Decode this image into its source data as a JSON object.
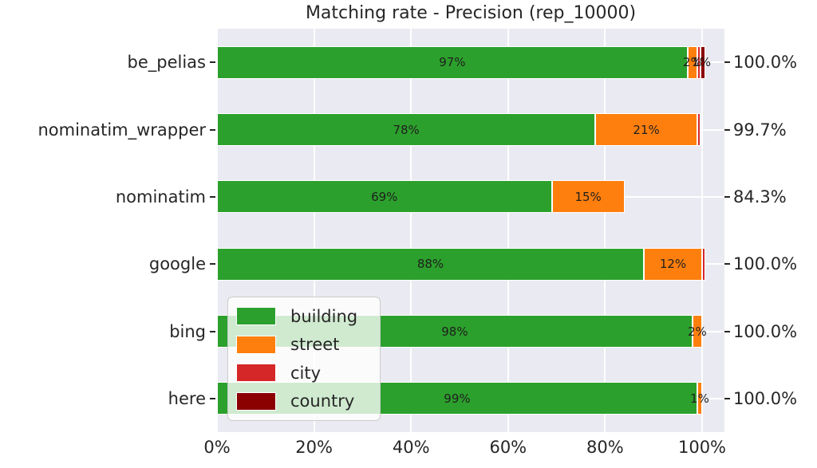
{
  "chart_data": {
    "type": "bar",
    "orientation": "horizontal",
    "stacked": true,
    "title": "Matching rate - Precision (rep_10000)",
    "categories": [
      "be_pelias",
      "nominatim_wrapper",
      "nominatim",
      "google",
      "bing",
      "here"
    ],
    "series": [
      {
        "name": "building",
        "color": "#2ca02c",
        "values": [
          97,
          78,
          69,
          88,
          98,
          99
        ]
      },
      {
        "name": "street",
        "color": "#ff7f0e",
        "values": [
          2,
          21,
          15,
          12,
          2,
          1
        ]
      },
      {
        "name": "city",
        "color": "#d62728",
        "values": [
          0.35,
          0.7,
          0,
          0.5,
          0,
          0
        ]
      },
      {
        "name": "country",
        "color": "#8b0000",
        "values": [
          1,
          0,
          0,
          0,
          0,
          0
        ]
      }
    ],
    "segment_labels": [
      [
        "97%",
        "2%",
        "",
        "1%"
      ],
      [
        "78%",
        "21%",
        "",
        ""
      ],
      [
        "69%",
        "15%",
        "",
        ""
      ],
      [
        "88%",
        "12%",
        "",
        ""
      ],
      [
        "98%",
        "2%",
        "",
        ""
      ],
      [
        "99%",
        "1%",
        "",
        ""
      ]
    ],
    "right_axis_labels": [
      "100.0%",
      "99.7%",
      "84.3%",
      "100.0%",
      "100.0%",
      "100.0%"
    ],
    "x_tick_labels": [
      "0%",
      "20%",
      "40%",
      "60%",
      "80%",
      "100%"
    ],
    "x_tick_values": [
      0,
      20,
      40,
      60,
      80,
      100
    ],
    "xlim": [
      0,
      104.6
    ],
    "grid": true,
    "legend": {
      "position": "lower left inside",
      "items": [
        "building",
        "street",
        "city",
        "country"
      ]
    },
    "colors": {
      "plot_background": "#eaeaf2",
      "grid": "#ffffff",
      "text": "#262626"
    }
  }
}
